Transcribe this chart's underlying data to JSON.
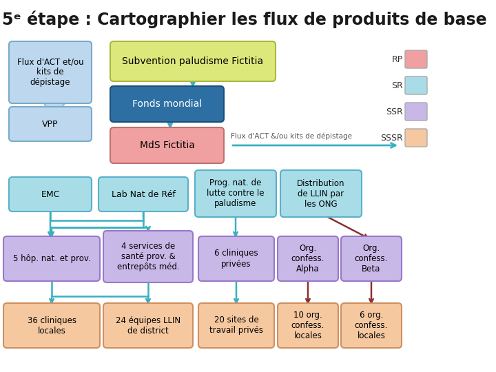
{
  "title": "5ᵉ étape : Cartographier les flux de produits de base",
  "bg_color": "#ffffff",
  "teal": "#38b0c0",
  "brown": "#8b3030",
  "light_blue_box": "#bdd8ee",
  "light_blue_edge": "#7aaac8",
  "green_box": "#dde87a",
  "green_edge": "#a8b840",
  "dark_blue_box": "#2e6fa3",
  "dark_blue_edge": "#1a4f7a",
  "pink_box": "#f0a0a0",
  "pink_edge": "#c07070",
  "cyan_box": "#a8dde8",
  "cyan_edge": "#5ab0c8",
  "purple_box": "#c8b8e8",
  "purple_edge": "#9878c8",
  "orange_box": "#f5c8a0",
  "orange_edge": "#d09060",
  "legend": [
    {
      "label": "RP",
      "color": "#f0a0a0"
    },
    {
      "label": "SR",
      "color": "#a8dde8"
    },
    {
      "label": "SSR",
      "color": "#c8b8e8"
    },
    {
      "label": "SSSR",
      "color": "#f5c8a0"
    }
  ]
}
